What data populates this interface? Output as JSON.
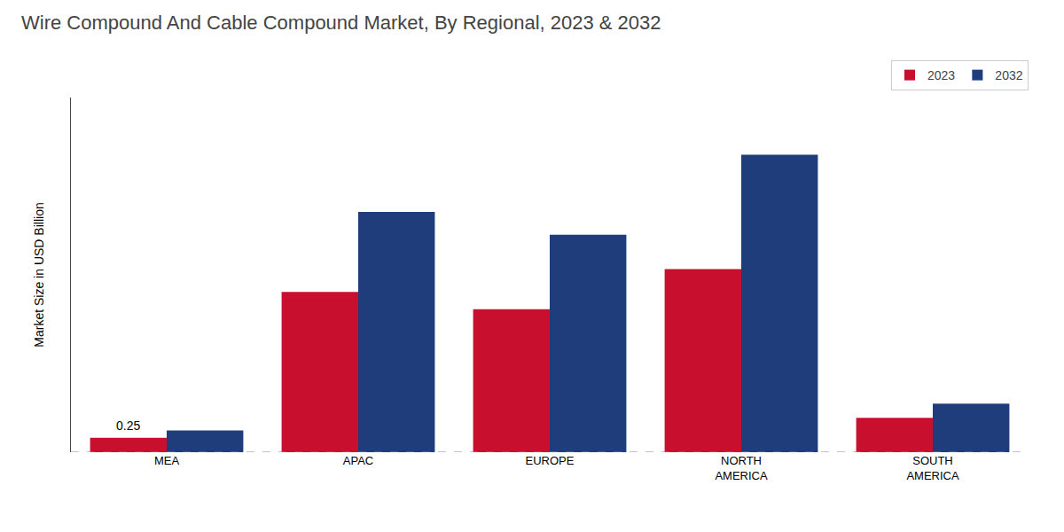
{
  "chart_data": {
    "type": "bar",
    "title": "Wire Compound And Cable Compound Market, By Regional, 2023 & 2032",
    "ylabel": "Market Size in USD Billion",
    "categories": [
      "MEA",
      "APAC",
      "EUROPE",
      "NORTH\nAMERICA",
      "SOUTH\nAMERICA"
    ],
    "series": [
      {
        "name": "2023",
        "color": "#c8102e",
        "values": [
          0.25,
          2.8,
          2.5,
          3.2,
          0.6
        ]
      },
      {
        "name": "2032",
        "color": "#1f3d7a",
        "values": [
          0.38,
          4.2,
          3.8,
          5.2,
          0.85
        ]
      }
    ],
    "annotations": [
      {
        "text": "0.25",
        "category": "MEA",
        "series": "2023",
        "value": 0.25
      }
    ],
    "ylim": [
      0,
      6.2
    ],
    "tick_labels": "x",
    "grid": false,
    "legend": "upper right"
  }
}
